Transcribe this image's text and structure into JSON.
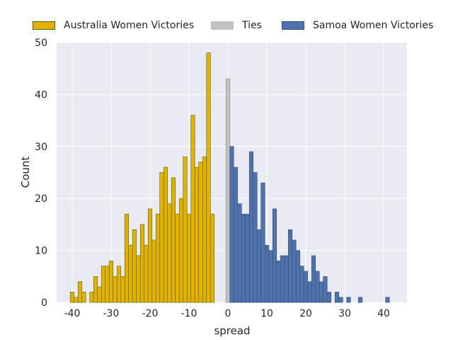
{
  "chart_data": {
    "type": "bar",
    "title": "",
    "xlabel": "spread",
    "ylabel": "Count",
    "xlim": [
      -44,
      46
    ],
    "ylim": [
      0,
      50
    ],
    "xticks": [
      -40,
      -30,
      -20,
      -10,
      0,
      10,
      20,
      30,
      40
    ],
    "yticks": [
      0,
      10,
      20,
      30,
      40,
      50
    ],
    "grid": true,
    "legend_position": "top-center",
    "series": [
      {
        "name": "Australia Women Victories",
        "color": "#e6b000",
        "edge_color": "#3d6b1e",
        "x": [
          -40,
          -39,
          -38,
          -37,
          -36,
          -35,
          -34,
          -33,
          -32,
          -31,
          -30,
          -29,
          -28,
          -27,
          -26,
          -25,
          -24,
          -23,
          -22,
          -21,
          -20,
          -19,
          -18,
          -17,
          -16,
          -15,
          -14,
          -13,
          -12,
          -11,
          -10,
          -9,
          -8,
          -7,
          -6,
          -5,
          -4,
          -3,
          -2,
          -1
        ],
        "values": [
          2,
          1,
          4,
          2,
          0,
          2,
          5,
          3,
          7,
          7,
          8,
          5,
          7,
          5,
          17,
          11,
          14,
          9,
          15,
          11,
          18,
          12,
          17,
          25,
          26,
          19,
          24,
          17,
          20,
          28,
          17,
          36,
          26,
          27,
          28,
          48,
          17,
          0,
          0,
          0
        ]
      },
      {
        "name": "Ties",
        "color": "#c3c3c3",
        "edge_color": "#8a8a8a",
        "x": [
          0
        ],
        "values": [
          43
        ]
      },
      {
        "name": "Samoa Women Victories",
        "color": "#4f72aa",
        "edge_color": "#2f4f80",
        "x": [
          1,
          2,
          3,
          4,
          5,
          6,
          7,
          8,
          9,
          10,
          11,
          12,
          13,
          14,
          15,
          16,
          17,
          18,
          19,
          20,
          21,
          22,
          23,
          24,
          25,
          26,
          27,
          28,
          29,
          30,
          31,
          32,
          33,
          34,
          35,
          36,
          37,
          38,
          39,
          40,
          41
        ],
        "values": [
          30,
          26,
          19,
          17,
          17,
          29,
          25,
          14,
          23,
          11,
          10,
          18,
          8,
          9,
          9,
          14,
          12,
          10,
          7,
          6,
          4,
          9,
          6,
          4,
          5,
          2,
          0,
          2,
          1,
          0,
          1,
          0,
          0,
          1,
          0,
          0,
          0,
          0,
          0,
          0,
          1
        ]
      }
    ]
  }
}
